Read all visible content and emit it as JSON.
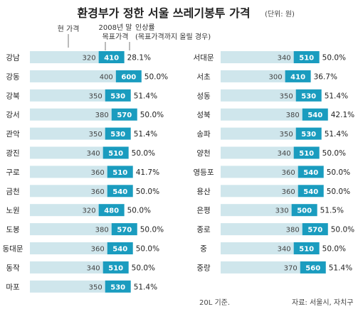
{
  "title": "환경부가 정한 서울 쓰레기봉투 가격",
  "unit": "(단위: 원)",
  "legend": {
    "current": "현 가격",
    "target": [
      "2008년 말",
      "목표가격"
    ],
    "increase": [
      "인상률",
      "(목표가격까지 올릴 경우)"
    ]
  },
  "footnote": "20L 기준.",
  "source": "자료: 서울시, 자치구",
  "colors": {
    "current_bar": "#cfe6ec",
    "target_bar": "#1a9cbf",
    "target_text": "#ffffff",
    "current_text": "#444444"
  },
  "chart_data": {
    "type": "bar",
    "title": "환경부가 정한 서울 쓰레기봉투 가격",
    "unit": "원",
    "series": [
      {
        "name": "현 가격"
      },
      {
        "name": "2008년 말 목표가격"
      },
      {
        "name": "인상률"
      }
    ],
    "panels": [
      {
        "rows": [
          {
            "district": "강남",
            "current": 320,
            "target": 410,
            "rate": "28.1%"
          },
          {
            "district": "강동",
            "current": 400,
            "target": 600,
            "rate": "50.0%"
          },
          {
            "district": "강북",
            "current": 350,
            "target": 530,
            "rate": "51.4%"
          },
          {
            "district": "강서",
            "current": 380,
            "target": 570,
            "rate": "50.0%"
          },
          {
            "district": "관악",
            "current": 350,
            "target": 530,
            "rate": "51.4%"
          },
          {
            "district": "광진",
            "current": 340,
            "target": 510,
            "rate": "50.0%"
          },
          {
            "district": "구로",
            "current": 360,
            "target": 510,
            "rate": "41.7%"
          },
          {
            "district": "금천",
            "current": 360,
            "target": 540,
            "rate": "50.0%"
          },
          {
            "district": "노원",
            "current": 320,
            "target": 480,
            "rate": "50.0%"
          },
          {
            "district": "도봉",
            "current": 380,
            "target": 570,
            "rate": "50.0%"
          },
          {
            "district": "동대문",
            "current": 360,
            "target": 540,
            "rate": "50.0%"
          },
          {
            "district": "동작",
            "current": 340,
            "target": 510,
            "rate": "50.0%"
          },
          {
            "district": "마포",
            "current": 350,
            "target": 530,
            "rate": "51.4%"
          }
        ]
      },
      {
        "rows": [
          {
            "district": "서대문",
            "current": 340,
            "target": 510,
            "rate": "50.0%"
          },
          {
            "district": "서초",
            "current": 300,
            "target": 410,
            "rate": "36.7%"
          },
          {
            "district": "성동",
            "current": 350,
            "target": 530,
            "rate": "51.4%"
          },
          {
            "district": "성북",
            "current": 380,
            "target": 540,
            "rate": "42.1%"
          },
          {
            "district": "송파",
            "current": 350,
            "target": 530,
            "rate": "51.4%"
          },
          {
            "district": "양천",
            "current": 340,
            "target": 510,
            "rate": "50.0%"
          },
          {
            "district": "영등포",
            "current": 360,
            "target": 540,
            "rate": "50.0%"
          },
          {
            "district": "용산",
            "current": 360,
            "target": 540,
            "rate": "50.0%"
          },
          {
            "district": "은평",
            "current": 330,
            "target": 500,
            "rate": "51.5%"
          },
          {
            "district": "종로",
            "current": 380,
            "target": 570,
            "rate": "50.0%"
          },
          {
            "district": "중",
            "current": 340,
            "target": 510,
            "rate": "50.0%"
          },
          {
            "district": "중랑",
            "current": 370,
            "target": 560,
            "rate": "51.4%"
          }
        ]
      }
    ]
  }
}
